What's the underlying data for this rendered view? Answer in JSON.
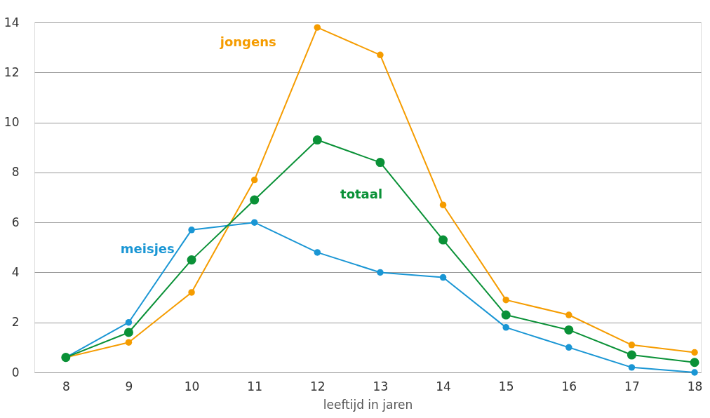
{
  "chart_data": {
    "type": "line",
    "xlabel": "leeftijd in jaren",
    "x": [
      8,
      9,
      10,
      11,
      12,
      13,
      14,
      15,
      16,
      17,
      18
    ],
    "xlim": [
      7.5,
      18.1
    ],
    "xticks": [
      8,
      9,
      10,
      11,
      12,
      13,
      14,
      15,
      16,
      17,
      18
    ],
    "ylim": [
      0,
      14
    ],
    "yticks": [
      0,
      2,
      4,
      6,
      8,
      10,
      12,
      14
    ],
    "grid": "y",
    "marker": "circle",
    "series": [
      {
        "name": "jongens",
        "color": "#f59c00",
        "values": [
          0.6,
          1.2,
          3.2,
          7.7,
          13.8,
          12.7,
          6.7,
          2.9,
          2.3,
          1.1,
          0.8
        ]
      },
      {
        "name": "meisjes",
        "color": "#1a96d4",
        "values": [
          0.6,
          2.0,
          5.7,
          6.0,
          4.8,
          4.0,
          3.8,
          1.8,
          1.0,
          0.2,
          0.0
        ]
      },
      {
        "name": "totaal",
        "color": "#0a9137",
        "values": [
          0.6,
          1.6,
          4.5,
          6.9,
          9.3,
          8.4,
          5.3,
          2.3,
          1.7,
          0.7,
          0.4
        ]
      }
    ]
  }
}
